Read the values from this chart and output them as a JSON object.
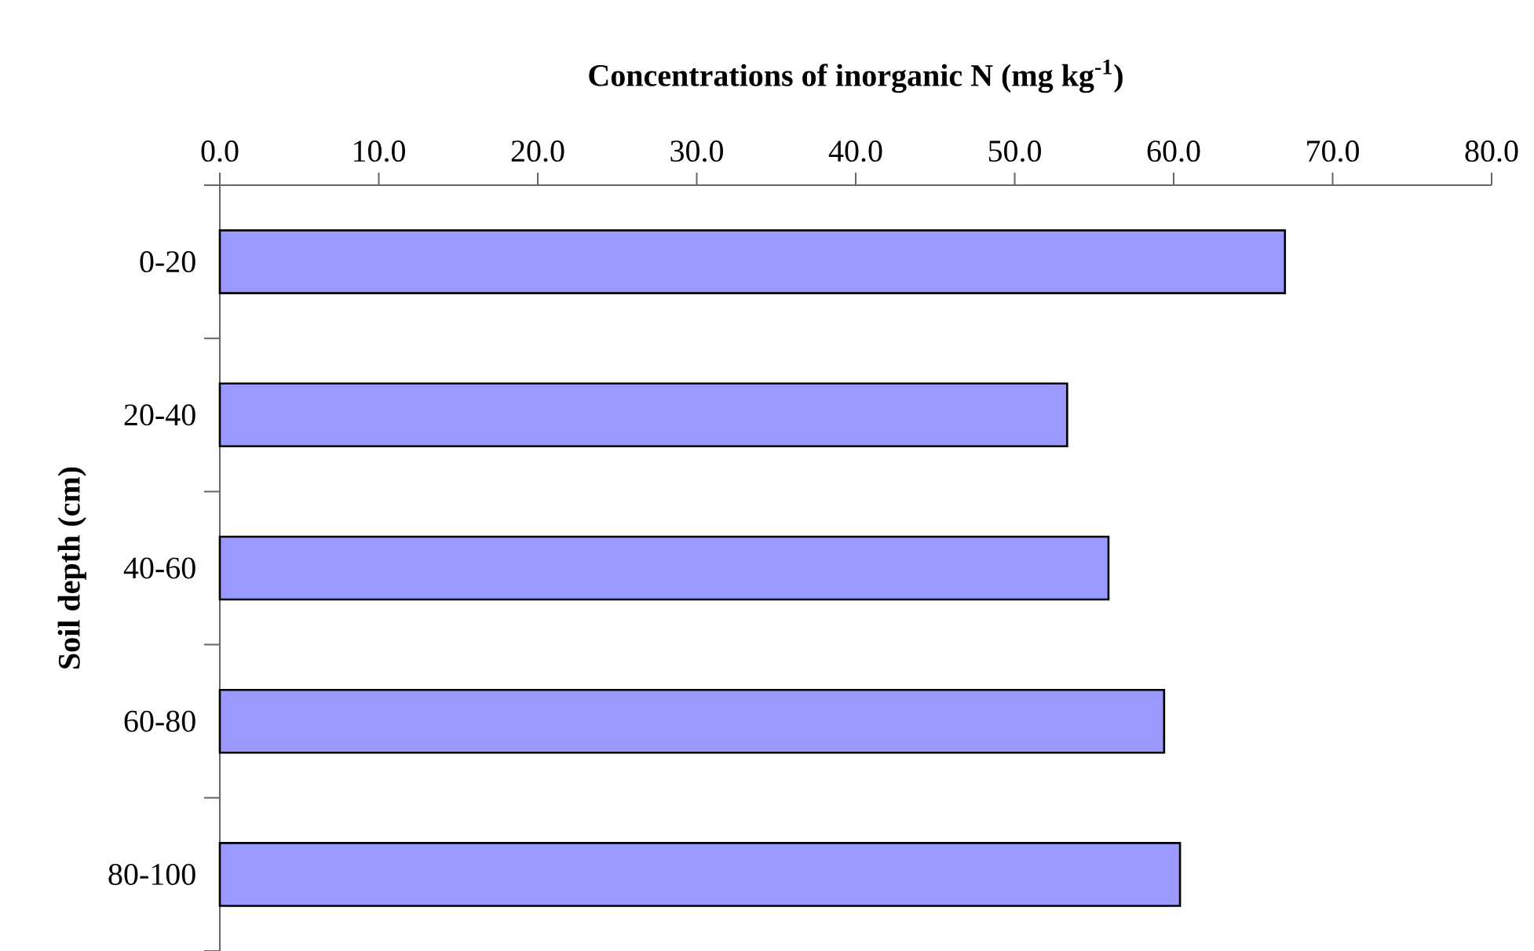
{
  "chart_data": {
    "type": "bar",
    "orientation": "horizontal",
    "xlabel": "Concentrations of inorganic N (mg kg$^{-1}$)",
    "ylabel": "Soil depth (cm)",
    "categories": [
      "0-20",
      "20-40",
      "40-60",
      "60-80",
      "80-100"
    ],
    "values": [
      67.0,
      53.3,
      55.9,
      59.4,
      60.4
    ],
    "color": "#9999ff",
    "xlim": [
      0,
      80
    ],
    "xticks": [
      {
        "value": 0,
        "label": "0.0"
      },
      {
        "value": 10,
        "label": "10.0"
      },
      {
        "value": 20,
        "label": "20.0"
      },
      {
        "value": 30,
        "label": "30.0"
      },
      {
        "value": 40,
        "label": "40.0"
      },
      {
        "value": 50,
        "label": "50.0"
      },
      {
        "value": 60,
        "label": "60.0"
      },
      {
        "value": 70,
        "label": "70.0"
      },
      {
        "value": 80,
        "label": "80.0"
      }
    ],
    "grid": false
  }
}
